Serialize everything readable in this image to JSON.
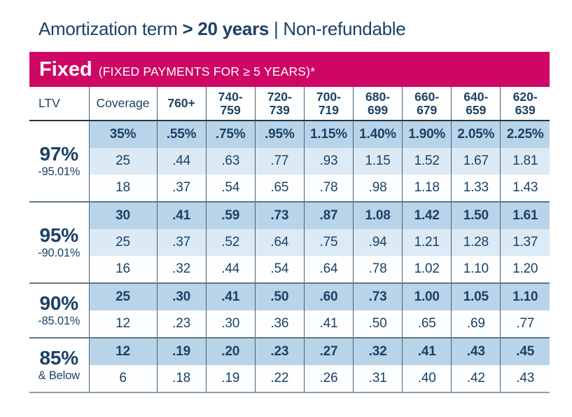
{
  "title": {
    "prefix": "Amortization term ",
    "bold": "> 20 years",
    "suffix": " | Non-refundable"
  },
  "banner": {
    "product": "Fixed",
    "subtitle": "(FIXED PAYMENTS FOR ≥ 5 YEARS)*"
  },
  "table": {
    "headers": [
      {
        "lines": [
          "LTV"
        ],
        "bold": false
      },
      {
        "lines": [
          "Coverage"
        ],
        "bold": false
      },
      {
        "lines": [
          "760+"
        ],
        "bold": true
      },
      {
        "lines": [
          "740-",
          "759"
        ],
        "bold": true
      },
      {
        "lines": [
          "720-",
          "739"
        ],
        "bold": true
      },
      {
        "lines": [
          "700-",
          "719"
        ],
        "bold": true
      },
      {
        "lines": [
          "680-",
          "699"
        ],
        "bold": true
      },
      {
        "lines": [
          "660-",
          "679"
        ],
        "bold": true
      },
      {
        "lines": [
          "640-",
          "659"
        ],
        "bold": true
      },
      {
        "lines": [
          "620-",
          "639"
        ],
        "bold": true
      }
    ],
    "groups": [
      {
        "ltv": "97%",
        "ltv_sub": "-95.01%",
        "rows": [
          {
            "coverage": "35%",
            "emphasis": true,
            "values": [
              ".55%",
              ".75%",
              ".95%",
              "1.15%",
              "1.40%",
              "1.90%",
              "2.05%",
              "2.25%"
            ]
          },
          {
            "coverage": "25",
            "emphasis": false,
            "values": [
              ".44",
              ".63",
              ".77",
              ".93",
              "1.15",
              "1.52",
              "1.67",
              "1.81"
            ]
          },
          {
            "coverage": "18",
            "emphasis": false,
            "values": [
              ".37",
              ".54",
              ".65",
              ".78",
              ".98",
              "1.18",
              "1.33",
              "1.43"
            ]
          }
        ]
      },
      {
        "ltv": "95%",
        "ltv_sub": "-90.01%",
        "rows": [
          {
            "coverage": "30",
            "emphasis": true,
            "values": [
              ".41",
              ".59",
              ".73",
              ".87",
              "1.08",
              "1.42",
              "1.50",
              "1.61"
            ]
          },
          {
            "coverage": "25",
            "emphasis": false,
            "values": [
              ".37",
              ".52",
              ".64",
              ".75",
              ".94",
              "1.21",
              "1.28",
              "1.37"
            ]
          },
          {
            "coverage": "16",
            "emphasis": false,
            "values": [
              ".32",
              ".44",
              ".54",
              ".64",
              ".78",
              "1.02",
              "1.10",
              "1.20"
            ]
          }
        ]
      },
      {
        "ltv": "90%",
        "ltv_sub": "-85.01%",
        "rows": [
          {
            "coverage": "25",
            "emphasis": true,
            "values": [
              ".30",
              ".41",
              ".50",
              ".60",
              ".73",
              "1.00",
              "1.05",
              "1.10"
            ]
          },
          {
            "coverage": "12",
            "emphasis": false,
            "values": [
              ".23",
              ".30",
              ".36",
              ".41",
              ".50",
              ".65",
              ".69",
              ".77"
            ]
          }
        ]
      },
      {
        "ltv": "85%",
        "ltv_sub": "& Below",
        "rows": [
          {
            "coverage": "12",
            "emphasis": true,
            "values": [
              ".19",
              ".20",
              ".23",
              ".27",
              ".32",
              ".41",
              ".43",
              ".45"
            ]
          },
          {
            "coverage": "6",
            "emphasis": false,
            "values": [
              ".18",
              ".19",
              ".22",
              ".26",
              ".31",
              ".40",
              ".42",
              ".43"
            ]
          }
        ]
      }
    ]
  },
  "colors": {
    "brand_pink": "#CE0765",
    "navy_text": "#1B4167",
    "row_strong_blue": "#B9D4E8",
    "row_light_blue": "#DBEAF5",
    "row_white": "#FDFEFF"
  }
}
